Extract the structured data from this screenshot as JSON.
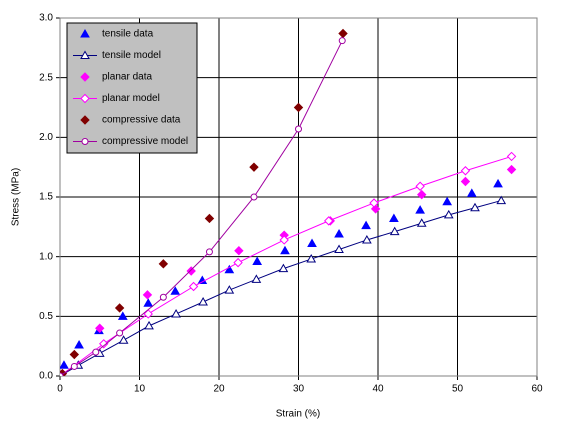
{
  "chart_data": {
    "type": "scatter",
    "xlabel": "Strain (%)",
    "ylabel": "Stress (MPa)",
    "xlim": [
      0,
      60
    ],
    "xticks": [
      0,
      10,
      20,
      30,
      40,
      50,
      60
    ],
    "ylim": [
      0,
      3
    ],
    "yticks": [
      {
        "value": 0,
        "label": "0.0"
      },
      0.5,
      {
        "value": 1,
        "label": "1.0"
      },
      1.5,
      {
        "value": 2,
        "label": "2.0"
      },
      2.5,
      {
        "value": 3,
        "label": "3.0"
      }
    ],
    "grid": true,
    "legend": "upper left",
    "series": [
      {
        "name": "tensile data",
        "color": "#0000ff",
        "marker": "triangle",
        "filled": true,
        "line": false,
        "x": [
          0.5,
          2.4,
          4.9,
          7.9,
          11.1,
          14.5,
          17.9,
          21.3,
          24.8,
          28.3,
          31.7,
          35.1,
          38.5,
          42.0,
          45.3,
          48.7,
          51.8,
          55.1
        ],
        "values": [
          0.09,
          0.26,
          0.38,
          0.5,
          0.61,
          0.71,
          0.8,
          0.89,
          0.96,
          1.05,
          1.11,
          1.19,
          1.26,
          1.32,
          1.39,
          1.46,
          1.53,
          1.61
        ]
      },
      {
        "name": "tensile model",
        "color": "#000080",
        "marker": "triangle",
        "filled": false,
        "line": true,
        "x": [
          0,
          2.3,
          5,
          8,
          11.2,
          14.6,
          18,
          21.3,
          24.7,
          28.1,
          31.6,
          35.1,
          38.6,
          42.1,
          45.5,
          48.9,
          52.2,
          55.5
        ],
        "values": [
          0,
          0.09,
          0.19,
          0.3,
          0.42,
          0.52,
          0.62,
          0.72,
          0.81,
          0.9,
          0.98,
          1.06,
          1.14,
          1.21,
          1.28,
          1.35,
          1.41,
          1.47
        ]
      },
      {
        "name": "planar data",
        "color": "#ff00ff",
        "marker": "diamond",
        "filled": true,
        "line": false,
        "x": [
          0.3,
          5,
          11,
          16.5,
          22.5,
          28.2,
          34,
          39.7,
          45.5,
          51,
          56.8
        ],
        "values": [
          0.02,
          0.4,
          0.68,
          0.88,
          1.05,
          1.18,
          1.3,
          1.4,
          1.52,
          1.63,
          1.73
        ]
      },
      {
        "name": "planar model",
        "color": "#ff00ff",
        "marker": "diamond",
        "filled": false,
        "line": true,
        "x": [
          0,
          5.5,
          11.1,
          16.8,
          22.4,
          28.2,
          33.8,
          39.5,
          45.3,
          51,
          56.8
        ],
        "values": [
          0,
          0.27,
          0.52,
          0.75,
          0.95,
          1.14,
          1.3,
          1.45,
          1.59,
          1.72,
          1.84
        ]
      },
      {
        "name": "compressive data",
        "color": "#800000",
        "marker": "diamond",
        "filled": true,
        "line": false,
        "x": [
          0.3,
          1.8,
          7.5,
          13,
          18.8,
          24.4,
          30,
          35.6
        ],
        "values": [
          0.02,
          0.18,
          0.57,
          0.94,
          1.32,
          1.75,
          2.25,
          2.87
        ]
      },
      {
        "name": "compressive model",
        "color": "#a000a0",
        "marker": "circle",
        "filled": false,
        "line": true,
        "x": [
          0,
          1.8,
          4.5,
          7.5,
          13,
          18.8,
          24.4,
          30,
          35.5
        ],
        "values": [
          0,
          0.08,
          0.2,
          0.36,
          0.66,
          1.04,
          1.5,
          2.07,
          2.81
        ]
      }
    ]
  }
}
